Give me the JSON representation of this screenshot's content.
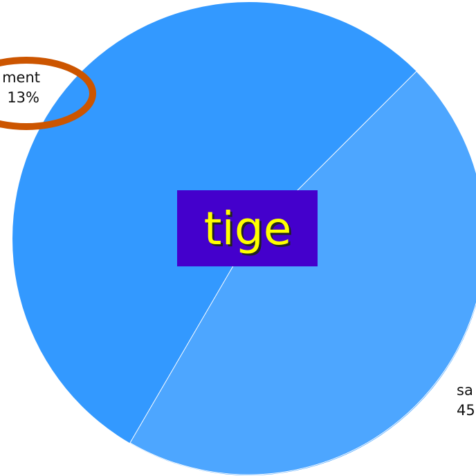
{
  "labels": [
    {
      "name": "ment",
      "value": "13%"
    },
    {
      "name": "sa",
      "value": "45"
    }
  ],
  "center_label": "tige"
}
